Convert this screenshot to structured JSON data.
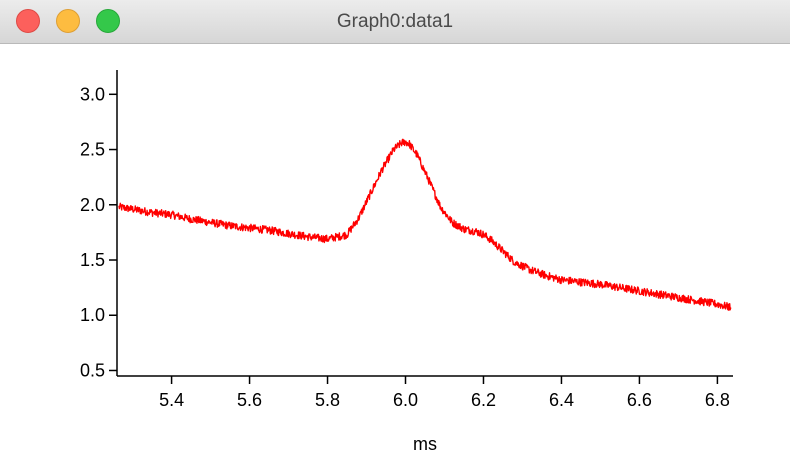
{
  "window": {
    "title": "Graph0:data1"
  },
  "colors": {
    "series": "#ff0000",
    "axis": "#000000"
  },
  "chart_data": {
    "type": "line",
    "xlabel": "ms",
    "ylabel": "",
    "xlim": [
      5.26,
      6.84
    ],
    "ylim": [
      0.45,
      3.22
    ],
    "xticks": [
      5.4,
      5.6,
      5.8,
      6.0,
      6.2,
      6.4,
      6.6,
      6.8
    ],
    "xtick_labels": [
      "5.4",
      "5.6",
      "5.8",
      "6.0",
      "6.2",
      "6.4",
      "6.6",
      "6.8"
    ],
    "yticks": [
      0.5,
      1.0,
      1.5,
      2.0,
      2.5,
      3.0
    ],
    "ytick_labels": [
      "0.5",
      "1.0",
      "1.5",
      "2.0",
      "2.5",
      "3.0"
    ],
    "grid": false,
    "series": [
      {
        "color": "#ff0000",
        "x": [
          5.265,
          5.3,
          5.35,
          5.4,
          5.45,
          5.5,
          5.55,
          5.6,
          5.65,
          5.7,
          5.75,
          5.8,
          5.85,
          5.88,
          5.91,
          5.94,
          5.97,
          5.99,
          6.0,
          6.01,
          6.03,
          6.06,
          6.09,
          6.12,
          6.15,
          6.18,
          6.2,
          6.22,
          6.25,
          6.28,
          6.32,
          6.36,
          6.4,
          6.45,
          6.5,
          6.55,
          6.6,
          6.65,
          6.7,
          6.75,
          6.8,
          6.835
        ],
        "y": [
          1.98,
          1.96,
          1.93,
          1.91,
          1.87,
          1.84,
          1.81,
          1.79,
          1.77,
          1.74,
          1.71,
          1.69,
          1.73,
          1.88,
          2.1,
          2.32,
          2.5,
          2.56,
          2.57,
          2.55,
          2.45,
          2.22,
          1.98,
          1.84,
          1.78,
          1.76,
          1.73,
          1.68,
          1.58,
          1.48,
          1.41,
          1.36,
          1.32,
          1.3,
          1.28,
          1.25,
          1.22,
          1.19,
          1.16,
          1.13,
          1.1,
          1.07
        ]
      }
    ]
  }
}
